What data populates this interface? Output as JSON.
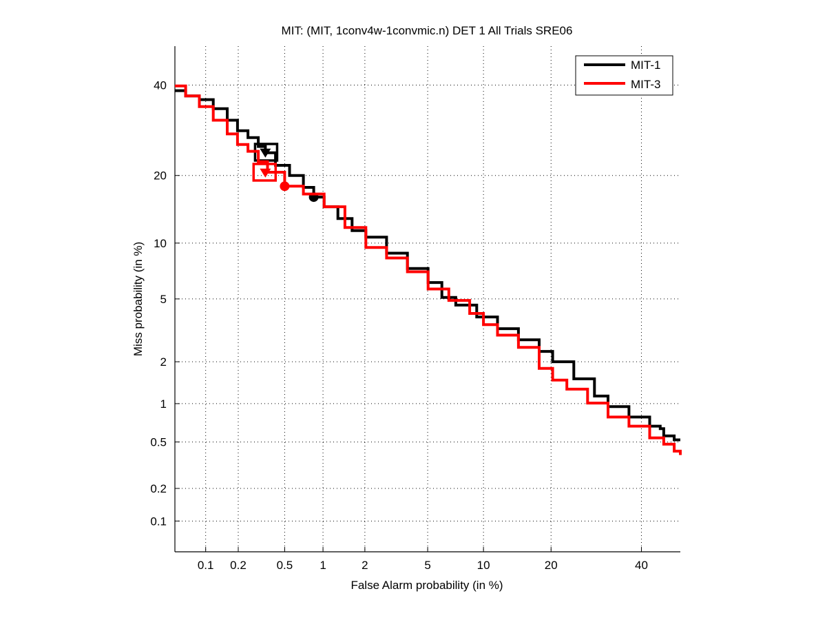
{
  "chart_data": {
    "type": "line",
    "title": "MIT: (MIT, 1conv4w-1convmic.n) DET 1 All Trials SRE06",
    "xlabel": "False Alarm probability (in %)",
    "ylabel": "Miss probability (in %)",
    "scale": "normal-deviate (probit)",
    "xlim": [
      0.05,
      50
    ],
    "ylim": [
      0.05,
      50
    ],
    "x_ticks": [
      0.1,
      0.2,
      0.5,
      1,
      2,
      5,
      10,
      20,
      40
    ],
    "x_tick_labels": [
      "0.1",
      "0.2",
      "0.5",
      "1",
      "2",
      "5",
      "10",
      "20",
      "40"
    ],
    "y_ticks": [
      0.1,
      0.2,
      0.5,
      1,
      2,
      5,
      10,
      20,
      40
    ],
    "y_tick_labels": [
      "0.1",
      "0.2",
      "0.5",
      "1",
      "2",
      "5",
      "10",
      "20",
      "40"
    ],
    "grid": true,
    "legend_position": "top-right",
    "series": [
      {
        "name": "MIT-1",
        "color": "#000000",
        "points": [
          [
            0.05,
            38.6
          ],
          [
            0.064,
            37.3
          ],
          [
            0.087,
            36.4
          ],
          [
            0.118,
            34.2
          ],
          [
            0.159,
            31.5
          ],
          [
            0.197,
            29.1
          ],
          [
            0.244,
            27.6
          ],
          [
            0.3,
            25.7
          ],
          [
            0.345,
            24.4
          ],
          [
            0.42,
            21.9
          ],
          [
            0.548,
            20.0
          ],
          [
            0.706,
            17.9
          ],
          [
            0.85,
            16.3
          ],
          [
            1.02,
            14.8
          ],
          [
            1.29,
            13.1
          ],
          [
            1.63,
            11.5
          ],
          [
            2.03,
            10.7
          ],
          [
            2.79,
            8.9
          ],
          [
            3.78,
            7.4
          ],
          [
            5.03,
            6.2
          ],
          [
            6.03,
            5.1
          ],
          [
            7.19,
            4.6
          ],
          [
            9.25,
            3.9
          ],
          [
            11.7,
            3.3
          ],
          [
            14.6,
            2.8
          ],
          [
            17.9,
            2.35
          ],
          [
            20.3,
            2.0
          ],
          [
            24.4,
            1.52
          ],
          [
            28.8,
            1.14
          ],
          [
            31.9,
            0.95
          ],
          [
            36.9,
            0.79
          ],
          [
            42.1,
            0.67
          ],
          [
            44.8,
            0.64
          ],
          [
            45.7,
            0.56
          ],
          [
            48.4,
            0.52
          ],
          [
            50.0,
            0.52
          ]
        ],
        "markers": [
          {
            "type": "square",
            "x": 0.35,
            "y": 24.5
          },
          {
            "type": "triangle",
            "x": 0.345,
            "y": 24.4
          },
          {
            "type": "circle",
            "x": 0.85,
            "y": 16.3
          }
        ]
      },
      {
        "name": "MIT-3",
        "color": "#ff0000",
        "points": [
          [
            0.05,
            39.8
          ],
          [
            0.064,
            37.3
          ],
          [
            0.087,
            34.7
          ],
          [
            0.118,
            31.5
          ],
          [
            0.159,
            28.4
          ],
          [
            0.197,
            26.1
          ],
          [
            0.244,
            24.7
          ],
          [
            0.3,
            22.6
          ],
          [
            0.36,
            20.6
          ],
          [
            0.5,
            18.1
          ],
          [
            0.706,
            16.8
          ],
          [
            1.02,
            14.8
          ],
          [
            1.45,
            11.9
          ],
          [
            2.03,
            9.5
          ],
          [
            2.79,
            8.4
          ],
          [
            3.78,
            7.1
          ],
          [
            5.03,
            5.7
          ],
          [
            6.59,
            4.9
          ],
          [
            8.51,
            4.1
          ],
          [
            10.0,
            3.5
          ],
          [
            11.7,
            3.0
          ],
          [
            14.6,
            2.5
          ],
          [
            17.9,
            1.8
          ],
          [
            20.3,
            1.49
          ],
          [
            23.0,
            1.28
          ],
          [
            27.3,
            1.01
          ],
          [
            31.9,
            0.79
          ],
          [
            36.9,
            0.67
          ],
          [
            42.1,
            0.54
          ],
          [
            45.7,
            0.48
          ],
          [
            48.4,
            0.42
          ],
          [
            50.0,
            0.39
          ]
        ],
        "markers": [
          {
            "type": "square",
            "x": 0.34,
            "y": 20.6
          },
          {
            "type": "triangle",
            "x": 0.345,
            "y": 20.5
          },
          {
            "type": "circle",
            "x": 0.5,
            "y": 18.1
          }
        ]
      }
    ]
  }
}
